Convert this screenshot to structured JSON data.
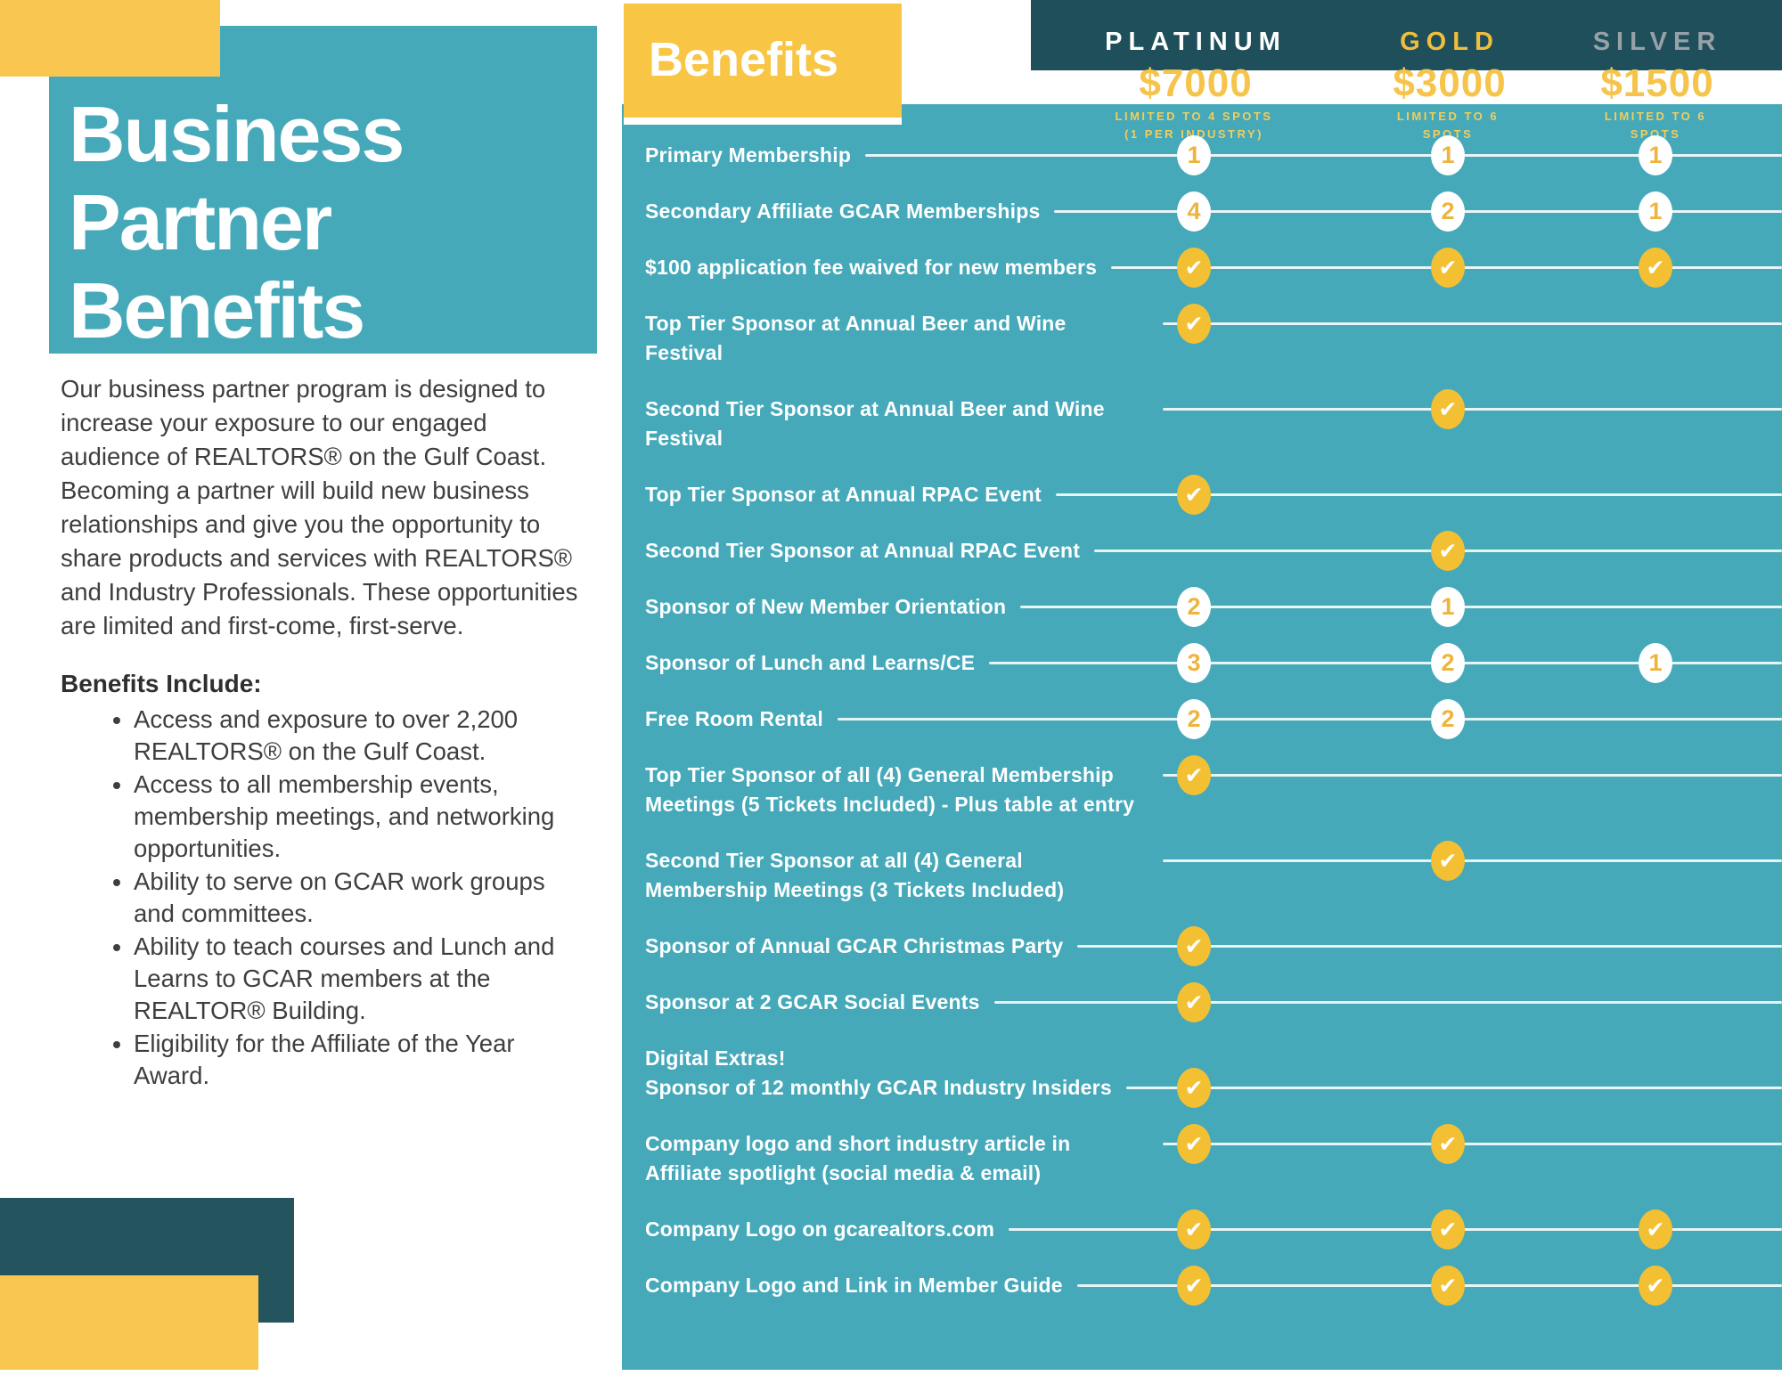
{
  "left": {
    "title": "Business\nPartner\nBenefits",
    "intro": "Our business partner program is designed to increase your exposure to our engaged audience of REALTORS® on the Gulf Coast. Becoming a partner will build new business relationships and give you the opportunity to share products and services with REALTORS® and Industry Professionals. These opportunities are limited and first-come, first-serve.",
    "benefits_heading": "Benefits Include:",
    "benefits_bullets": [
      "Access and exposure to over 2,200 REALTORS® on the Gulf Coast.",
      "Access to all membership events, membership meetings, and networking opportunities.",
      "Ability to serve on GCAR work groups and committees.",
      "Ability to teach courses and Lunch and Learns to GCAR members at the REALTOR® Building.",
      "Eligibility for the Affiliate of the Year Award."
    ]
  },
  "table": {
    "benefits_label": "Benefits",
    "tiers": [
      {
        "name": "PLATINUM",
        "price": "$7000",
        "limit": "LIMITED TO 4 SPOTS\n(1 PER INDUSTRY)"
      },
      {
        "name": "GOLD",
        "price": "$3000",
        "limit": "LIMITED TO 6\nSPOTS"
      },
      {
        "name": "SILVER",
        "price": "$1500",
        "limit": "LIMITED TO 6\nSPOTS"
      }
    ],
    "rows": [
      {
        "label": "Primary Membership",
        "platinum": "1",
        "gold": "1",
        "silver": "1"
      },
      {
        "label": "Secondary Affiliate GCAR Memberships",
        "platinum": "4",
        "gold": "2",
        "silver": "1"
      },
      {
        "label": "$100 application fee waived for new members",
        "platinum": "check",
        "gold": "check",
        "silver": "check"
      },
      {
        "label": "Top Tier Sponsor at Annual Beer and Wine Festival",
        "platinum": "check",
        "gold": "",
        "silver": ""
      },
      {
        "label": "Second Tier Sponsor at Annual Beer and Wine Festival",
        "platinum": "",
        "gold": "check",
        "silver": ""
      },
      {
        "label": "Top Tier Sponsor at Annual RPAC Event",
        "platinum": "check",
        "gold": "",
        "silver": ""
      },
      {
        "label": "Second Tier Sponsor at Annual RPAC Event",
        "platinum": "",
        "gold": "check",
        "silver": ""
      },
      {
        "label": "Sponsor of New Member Orientation",
        "platinum": "2",
        "gold": "1",
        "silver": ""
      },
      {
        "label": "Sponsor of Lunch and Learns/CE",
        "platinum": "3",
        "gold": "2",
        "silver": "1"
      },
      {
        "label": "Free Room Rental",
        "platinum": "2",
        "gold": "2",
        "silver": ""
      },
      {
        "label": "Top Tier Sponsor of all (4) General Membership Meetings (5 Tickets Included) - Plus table at entry",
        "platinum": "check",
        "gold": "",
        "silver": ""
      },
      {
        "label": "Second Tier Sponsor at all (4) General Membership Meetings (3 Tickets Included)",
        "platinum": "",
        "gold": "check",
        "silver": ""
      },
      {
        "label": "Sponsor of Annual GCAR Christmas Party",
        "platinum": "check",
        "gold": "",
        "silver": ""
      },
      {
        "label": "Sponsor at 2 GCAR Social Events",
        "platinum": "check",
        "gold": "",
        "silver": ""
      },
      {
        "label": "Digital Extras!\nSponsor of 12 monthly GCAR Industry Insiders",
        "platinum": "check",
        "gold": "",
        "silver": "",
        "second_line_align": true
      },
      {
        "label": "Company logo and short industry article in Affiliate spotlight (social media & email)",
        "platinum": "check",
        "gold": "check",
        "silver": ""
      },
      {
        "label": "Company Logo on gcarealtors.com",
        "platinum": "check",
        "gold": "check",
        "silver": "check"
      },
      {
        "label": "Company Logo and Link in Member Guide",
        "platinum": "check",
        "gold": "check",
        "silver": "check"
      }
    ]
  },
  "colors": {
    "teal": "#45a9ba",
    "dark_teal": "#1e4f5a",
    "yellow": "#f8c545",
    "gold_text": "#f0be3a",
    "silver_text": "#98a0a8",
    "price_yellow": "#f6c44a",
    "circle_number": "#edb43e",
    "body_text": "#3e3e3e"
  }
}
